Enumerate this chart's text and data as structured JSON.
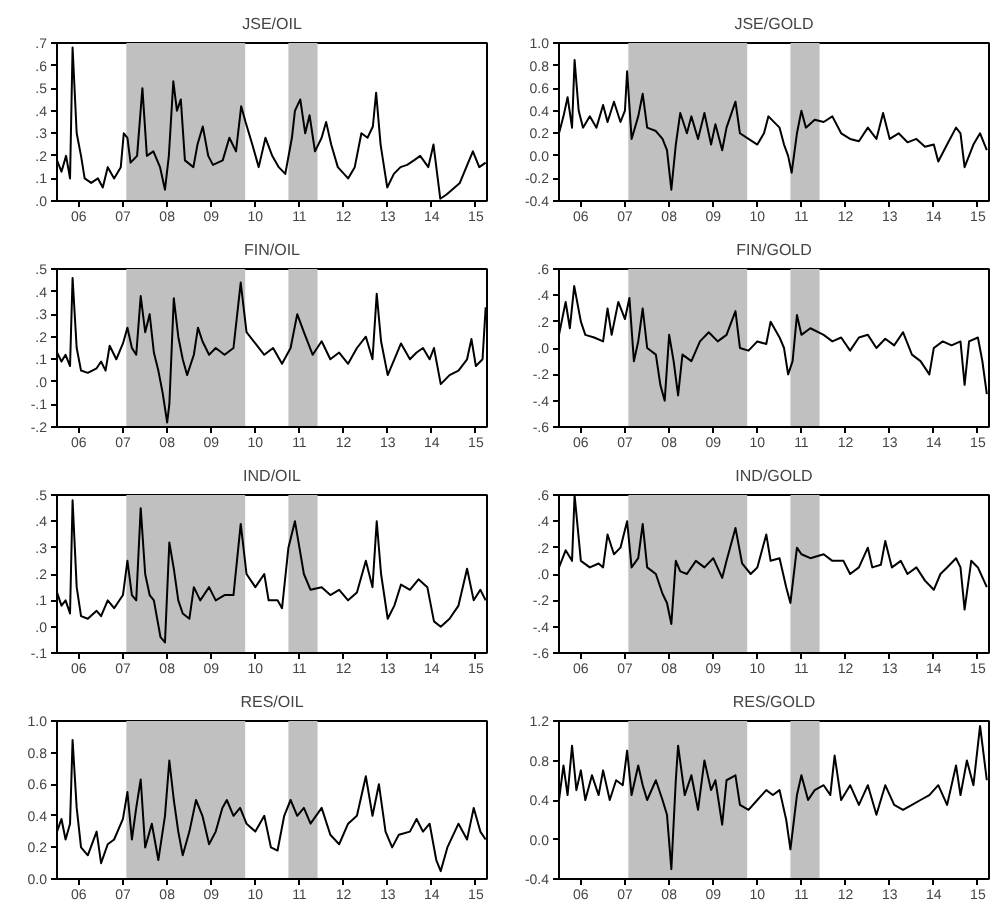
{
  "chart_data": [
    {
      "type": "line",
      "title": "JSE/OIL",
      "xlim": [
        "2006-01-01",
        "2015-10-01"
      ],
      "ylim": [
        0,
        0.7
      ],
      "grid": false,
      "xticks": [
        {
          "value": "2006-07-01",
          "label": "06"
        },
        {
          "value": "2007-07-01",
          "label": "07"
        },
        {
          "value": "2008-07-01",
          "label": "08"
        },
        {
          "value": "2009-07-01",
          "label": "09"
        },
        {
          "value": "2010-07-01",
          "label": "10"
        },
        {
          "value": "2011-07-01",
          "label": "11"
        },
        {
          "value": "2012-07-01",
          "label": "12"
        },
        {
          "value": "2013-07-01",
          "label": "13"
        },
        {
          "value": "2014-07-01",
          "label": "14"
        },
        {
          "value": "2015-07-01",
          "label": "15"
        }
      ],
      "yticks": [
        {
          "value": 0,
          "label": ".0"
        },
        {
          "value": 0.1,
          "label": ".1"
        },
        {
          "value": 0.2,
          "label": ".2"
        },
        {
          "value": 0.3,
          "label": ".3"
        },
        {
          "value": 0.4,
          "label": ".4"
        },
        {
          "value": 0.5,
          "label": ".5"
        },
        {
          "value": 0.6,
          "label": ".6"
        },
        {
          "value": 0.7,
          "label": ".7"
        }
      ],
      "bands": [
        {
          "axis": "x",
          "from": "2007-07-29",
          "to": "2010-04-08",
          "color": "#c0c0c0"
        },
        {
          "axis": "x",
          "from": "2011-04-01",
          "to": "2011-11-28",
          "color": "#c0c0c0"
        }
      ],
      "x": [
        "2006-01-01",
        "2006-02-07",
        "2006-03-17",
        "2006-04-19",
        "2006-05-10",
        "2006-06-13",
        "2006-07-19",
        "2006-08-18",
        "2006-10-11",
        "2006-12-06",
        "2007-01-15",
        "2007-02-25",
        "2007-04-19",
        "2007-06-13",
        "2007-07-08",
        "2007-08-07",
        "2007-09-02",
        "2007-10-26",
        "2007-12-09",
        "2008-01-15",
        "2008-03-09",
        "2008-05-03",
        "2008-06-13",
        "2008-07-15",
        "2008-08-21",
        "2008-09-20",
        "2008-10-22",
        "2008-11-25",
        "2009-02-03",
        "2009-03-09",
        "2009-04-22",
        "2009-06-06",
        "2009-07-15",
        "2009-10-04",
        "2009-11-28",
        "2010-01-22",
        "2010-03-06",
        "2010-04-11",
        "2010-06-06",
        "2010-07-29",
        "2010-09-23",
        "2010-11-18",
        "2011-01-11",
        "2011-03-06",
        "2011-04-30",
        "2011-05-25",
        "2011-07-08",
        "2011-08-18",
        "2011-09-23",
        "2011-11-07",
        "2012-01-01",
        "2012-02-07",
        "2012-03-20",
        "2012-05-14",
        "2012-08-07",
        "2012-10-01",
        "2012-11-25",
        "2013-01-15",
        "2013-02-28",
        "2013-03-27",
        "2013-05-03",
        "2013-06-27",
        "2013-08-21",
        "2013-10-15",
        "2013-12-09",
        "2014-02-03",
        "2014-03-27",
        "2014-06-02",
        "2014-07-15",
        "2014-09-09",
        "2014-11-03",
        "2015-02-18",
        "2015-06-06",
        "2015-07-29",
        "2015-09-20"
      ],
      "series": [
        {
          "color": "#000000",
          "values": [
            0.18,
            0.13,
            0.2,
            0.1,
            0.68,
            0.3,
            0.2,
            0.1,
            0.08,
            0.1,
            0.06,
            0.15,
            0.1,
            0.15,
            0.3,
            0.28,
            0.17,
            0.2,
            0.5,
            0.2,
            0.22,
            0.15,
            0.05,
            0.2,
            0.53,
            0.4,
            0.45,
            0.18,
            0.15,
            0.25,
            0.33,
            0.2,
            0.16,
            0.18,
            0.28,
            0.22,
            0.42,
            0.35,
            0.25,
            0.15,
            0.28,
            0.2,
            0.15,
            0.12,
            0.28,
            0.4,
            0.45,
            0.3,
            0.38,
            0.22,
            0.28,
            0.35,
            0.25,
            0.15,
            0.1,
            0.15,
            0.3,
            0.28,
            0.33,
            0.48,
            0.25,
            0.06,
            0.12,
            0.15,
            0.16,
            0.18,
            0.2,
            0.15,
            0.25,
            0.01,
            0.03,
            0.08,
            0.22,
            0.15,
            0.17
          ]
        }
      ]
    },
    {
      "type": "line",
      "title": "JSE/GOLD",
      "xlim": [
        "2006-01-01",
        "2015-10-01"
      ],
      "ylim": [
        -0.4,
        1.0
      ],
      "grid": false,
      "xticks": [
        {
          "value": "2006-07-01",
          "label": "06"
        },
        {
          "value": "2007-07-01",
          "label": "07"
        },
        {
          "value": "2008-07-01",
          "label": "08"
        },
        {
          "value": "2009-07-01",
          "label": "09"
        },
        {
          "value": "2010-07-01",
          "label": "10"
        },
        {
          "value": "2011-07-01",
          "label": "11"
        },
        {
          "value": "2012-07-01",
          "label": "12"
        },
        {
          "value": "2013-07-01",
          "label": "13"
        },
        {
          "value": "2014-07-01",
          "label": "14"
        },
        {
          "value": "2015-07-01",
          "label": "15"
        }
      ],
      "yticks": [
        {
          "value": -0.4,
          "label": "-0.4"
        },
        {
          "value": -0.2,
          "label": "-0.2"
        },
        {
          "value": 0,
          "label": "0.0"
        },
        {
          "value": 0.2,
          "label": "0.2"
        },
        {
          "value": 0.4,
          "label": "0.4"
        },
        {
          "value": 0.6,
          "label": "0.6"
        },
        {
          "value": 0.8,
          "label": "0.8"
        },
        {
          "value": 1.0,
          "label": "1.0"
        }
      ],
      "bands": [
        {
          "axis": "x",
          "from": "2007-07-29",
          "to": "2010-04-08",
          "color": "#c0c0c0"
        },
        {
          "axis": "x",
          "from": "2011-04-01",
          "to": "2011-11-28",
          "color": "#c0c0c0"
        }
      ],
      "x": [
        "2006-01-01",
        "2006-02-07",
        "2006-03-13",
        "2006-04-19",
        "2006-05-10",
        "2006-06-13",
        "2006-07-19",
        "2006-09-13",
        "2006-11-07",
        "2007-01-01",
        "2007-02-07",
        "2007-04-01",
        "2007-05-25",
        "2007-07-01",
        "2007-07-19",
        "2007-08-25",
        "2007-10-19",
        "2007-11-25",
        "2008-01-01",
        "2008-03-13",
        "2008-05-07",
        "2008-06-13",
        "2008-07-19",
        "2008-08-25",
        "2008-10-01",
        "2008-11-25",
        "2009-01-01",
        "2009-02-25",
        "2009-04-19",
        "2009-06-13",
        "2009-07-19",
        "2009-09-13",
        "2009-10-19",
        "2010-01-01",
        "2010-02-07",
        "2010-04-19",
        "2010-07-01",
        "2010-08-25",
        "2010-10-01",
        "2011-01-01",
        "2011-02-07",
        "2011-03-13",
        "2011-04-11",
        "2011-05-25",
        "2011-07-01",
        "2011-08-07",
        "2011-10-19",
        "2012-01-01",
        "2012-03-13",
        "2012-05-25",
        "2012-08-07",
        "2012-10-19",
        "2013-01-01",
        "2013-03-13",
        "2013-05-07",
        "2013-07-01",
        "2013-09-13",
        "2013-11-25",
        "2014-02-07",
        "2014-04-19",
        "2014-07-01",
        "2014-08-07",
        "2014-10-19",
        "2015-01-01",
        "2015-02-07",
        "2015-03-13",
        "2015-05-25",
        "2015-07-19",
        "2015-09-13"
      ],
      "series": [
        {
          "color": "#000000",
          "values": [
            0.2,
            0.35,
            0.52,
            0.25,
            0.85,
            0.4,
            0.25,
            0.35,
            0.25,
            0.45,
            0.3,
            0.48,
            0.3,
            0.4,
            0.75,
            0.15,
            0.35,
            0.55,
            0.25,
            0.22,
            0.15,
            0.05,
            -0.3,
            0.1,
            0.38,
            0.2,
            0.35,
            0.15,
            0.38,
            0.1,
            0.28,
            0.05,
            0.25,
            0.48,
            0.2,
            0.15,
            0.1,
            0.2,
            0.35,
            0.25,
            0.1,
            0.0,
            -0.15,
            0.2,
            0.4,
            0.25,
            0.32,
            0.3,
            0.35,
            0.2,
            0.15,
            0.13,
            0.25,
            0.15,
            0.38,
            0.15,
            0.2,
            0.12,
            0.15,
            0.08,
            0.1,
            -0.05,
            0.1,
            0.25,
            0.2,
            -0.1,
            0.1,
            0.2,
            0.05
          ]
        }
      ]
    },
    {
      "type": "line",
      "title": "FIN/OIL",
      "xlim": [
        "2006-01-01",
        "2015-10-01"
      ],
      "ylim": [
        -0.2,
        0.5
      ],
      "grid": false,
      "xticks": [
        {
          "value": "2006-07-01",
          "label": "06"
        },
        {
          "value": "2007-07-01",
          "label": "07"
        },
        {
          "value": "2008-07-01",
          "label": "08"
        },
        {
          "value": "2009-07-01",
          "label": "09"
        },
        {
          "value": "2010-07-01",
          "label": "10"
        },
        {
          "value": "2011-07-01",
          "label": "11"
        },
        {
          "value": "2012-07-01",
          "label": "12"
        },
        {
          "value": "2013-07-01",
          "label": "13"
        },
        {
          "value": "2014-07-01",
          "label": "14"
        },
        {
          "value": "2015-07-01",
          "label": "15"
        }
      ],
      "yticks": [
        {
          "value": -0.2,
          "label": "-.2"
        },
        {
          "value": -0.1,
          "label": "-.1"
        },
        {
          "value": 0,
          "label": ".0"
        },
        {
          "value": 0.1,
          "label": ".1"
        },
        {
          "value": 0.2,
          "label": ".2"
        },
        {
          "value": 0.3,
          "label": ".3"
        },
        {
          "value": 0.4,
          "label": ".4"
        },
        {
          "value": 0.5,
          "label": ".5"
        }
      ],
      "bands": [
        {
          "axis": "x",
          "from": "2007-07-29",
          "to": "2010-04-08",
          "color": "#c0c0c0"
        },
        {
          "axis": "x",
          "from": "2011-04-01",
          "to": "2011-11-28",
          "color": "#c0c0c0"
        }
      ],
      "x": [
        "2006-01-01",
        "2006-02-07",
        "2006-03-13",
        "2006-04-19",
        "2006-05-10",
        "2006-06-13",
        "2006-07-19",
        "2006-09-13",
        "2006-11-25",
        "2007-01-01",
        "2007-02-07",
        "2007-03-13",
        "2007-05-07",
        "2007-07-01",
        "2007-08-07",
        "2007-09-13",
        "2007-10-19",
        "2007-11-25",
        "2008-01-01",
        "2008-02-07",
        "2008-03-13",
        "2008-04-19",
        "2008-05-25",
        "2008-07-01",
        "2008-07-19",
        "2008-08-25",
        "2008-10-01",
        "2008-11-07",
        "2008-12-13",
        "2009-02-07",
        "2009-03-13",
        "2009-04-19",
        "2009-06-13",
        "2009-08-07",
        "2009-10-19",
        "2010-01-01",
        "2010-03-02",
        "2010-04-19",
        "2010-07-01",
        "2010-09-13",
        "2010-11-25",
        "2011-02-07",
        "2011-04-19",
        "2011-06-13",
        "2011-08-07",
        "2011-10-19",
        "2012-01-01",
        "2012-03-13",
        "2012-05-25",
        "2012-08-07",
        "2012-10-19",
        "2013-01-01",
        "2013-02-25",
        "2013-04-01",
        "2013-05-07",
        "2013-07-01",
        "2013-08-25",
        "2013-10-19",
        "2014-01-01",
        "2014-02-25",
        "2014-04-19",
        "2014-06-13",
        "2014-07-19",
        "2014-09-13",
        "2014-11-25",
        "2015-02-07",
        "2015-04-19",
        "2015-05-25",
        "2015-07-01",
        "2015-08-25",
        "2015-09-20"
      ],
      "series": [
        {
          "color": "#000000",
          "values": [
            0.13,
            0.09,
            0.12,
            0.07,
            0.46,
            0.15,
            0.05,
            0.04,
            0.06,
            0.09,
            0.05,
            0.16,
            0.1,
            0.17,
            0.24,
            0.15,
            0.12,
            0.38,
            0.22,
            0.3,
            0.13,
            0.05,
            -0.05,
            -0.18,
            -0.1,
            0.37,
            0.2,
            0.1,
            0.03,
            0.12,
            0.24,
            0.18,
            0.12,
            0.15,
            0.12,
            0.15,
            0.44,
            0.22,
            0.17,
            0.12,
            0.15,
            0.08,
            0.15,
            0.3,
            0.22,
            0.12,
            0.18,
            0.1,
            0.13,
            0.08,
            0.15,
            0.2,
            0.1,
            0.39,
            0.18,
            0.03,
            0.1,
            0.17,
            0.1,
            0.13,
            0.15,
            0.1,
            0.15,
            -0.01,
            0.03,
            0.05,
            0.1,
            0.19,
            0.07,
            0.1,
            0.33
          ]
        }
      ]
    },
    {
      "type": "line",
      "title": "FIN/GOLD",
      "xlim": [
        "2006-01-01",
        "2015-10-01"
      ],
      "ylim": [
        -0.6,
        0.6
      ],
      "grid": false,
      "xticks": [
        {
          "value": "2006-07-01",
          "label": "06"
        },
        {
          "value": "2007-07-01",
          "label": "07"
        },
        {
          "value": "2008-07-01",
          "label": "08"
        },
        {
          "value": "2009-07-01",
          "label": "09"
        },
        {
          "value": "2010-07-01",
          "label": "10"
        },
        {
          "value": "2011-07-01",
          "label": "11"
        },
        {
          "value": "2012-07-01",
          "label": "12"
        },
        {
          "value": "2013-07-01",
          "label": "13"
        },
        {
          "value": "2014-07-01",
          "label": "14"
        },
        {
          "value": "2015-07-01",
          "label": "15"
        }
      ],
      "yticks": [
        {
          "value": -0.6,
          "label": "-.6"
        },
        {
          "value": -0.4,
          "label": "-.4"
        },
        {
          "value": -0.2,
          "label": "-.2"
        },
        {
          "value": 0,
          "label": ".0"
        },
        {
          "value": 0.2,
          "label": ".2"
        },
        {
          "value": 0.4,
          "label": ".4"
        },
        {
          "value": 0.6,
          "label": ".6"
        }
      ],
      "bands": [
        {
          "axis": "x",
          "from": "2007-07-29",
          "to": "2010-04-08",
          "color": "#c0c0c0"
        },
        {
          "axis": "x",
          "from": "2011-04-01",
          "to": "2011-11-28",
          "color": "#c0c0c0"
        }
      ],
      "x": [
        "2006-01-01",
        "2006-02-25",
        "2006-04-01",
        "2006-05-07",
        "2006-07-01",
        "2006-08-07",
        "2006-10-19",
        "2007-01-01",
        "2007-02-07",
        "2007-03-13",
        "2007-05-07",
        "2007-07-01",
        "2007-08-07",
        "2007-09-13",
        "2007-10-19",
        "2007-11-25",
        "2008-01-01",
        "2008-03-13",
        "2008-04-19",
        "2008-05-25",
        "2008-07-01",
        "2008-08-07",
        "2008-09-13",
        "2008-10-19",
        "2009-01-01",
        "2009-03-13",
        "2009-05-25",
        "2009-08-07",
        "2009-10-19",
        "2010-01-01",
        "2010-02-07",
        "2010-04-19",
        "2010-07-01",
        "2010-09-13",
        "2010-10-19",
        "2011-01-01",
        "2011-02-07",
        "2011-03-13",
        "2011-04-19",
        "2011-05-25",
        "2011-07-01",
        "2011-09-13",
        "2012-01-01",
        "2012-03-13",
        "2012-05-25",
        "2012-08-07",
        "2012-10-19",
        "2013-01-01",
        "2013-03-13",
        "2013-05-25",
        "2013-08-07",
        "2013-10-19",
        "2014-01-01",
        "2014-03-13",
        "2014-05-25",
        "2014-07-01",
        "2014-09-13",
        "2014-11-25",
        "2015-02-07",
        "2015-03-13",
        "2015-04-19",
        "2015-07-01",
        "2015-08-07",
        "2015-09-13"
      ],
      "series": [
        {
          "color": "#000000",
          "values": [
            0.1,
            0.35,
            0.15,
            0.47,
            0.2,
            0.1,
            0.08,
            0.05,
            0.3,
            0.1,
            0.35,
            0.22,
            0.38,
            -0.1,
            0.05,
            0.3,
            0.0,
            -0.05,
            -0.28,
            -0.4,
            0.1,
            -0.1,
            -0.36,
            -0.05,
            -0.1,
            0.05,
            0.12,
            0.05,
            0.1,
            0.28,
            0.0,
            -0.02,
            0.05,
            0.03,
            0.2,
            0.08,
            0.0,
            -0.2,
            -0.1,
            0.25,
            0.1,
            0.15,
            0.1,
            0.05,
            0.08,
            -0.02,
            0.08,
            0.1,
            0.0,
            0.07,
            0.02,
            0.12,
            -0.05,
            -0.1,
            -0.2,
            0.0,
            0.05,
            0.02,
            0.05,
            -0.28,
            0.05,
            0.08,
            -0.1,
            -0.35
          ]
        }
      ]
    },
    {
      "type": "line",
      "title": "IND/OIL",
      "xlim": [
        "2006-01-01",
        "2015-10-01"
      ],
      "ylim": [
        -0.1,
        0.5
      ],
      "grid": false,
      "xticks": [
        {
          "value": "2006-07-01",
          "label": "06"
        },
        {
          "value": "2007-07-01",
          "label": "07"
        },
        {
          "value": "2008-07-01",
          "label": "08"
        },
        {
          "value": "2009-07-01",
          "label": "09"
        },
        {
          "value": "2010-07-01",
          "label": "10"
        },
        {
          "value": "2011-07-01",
          "label": "11"
        },
        {
          "value": "2012-07-01",
          "label": "12"
        },
        {
          "value": "2013-07-01",
          "label": "13"
        },
        {
          "value": "2014-07-01",
          "label": "14"
        },
        {
          "value": "2015-07-01",
          "label": "15"
        }
      ],
      "yticks": [
        {
          "value": -0.1,
          "label": "-.1"
        },
        {
          "value": 0,
          "label": ".0"
        },
        {
          "value": 0.1,
          "label": ".1"
        },
        {
          "value": 0.2,
          "label": ".2"
        },
        {
          "value": 0.3,
          "label": ".3"
        },
        {
          "value": 0.4,
          "label": ".4"
        },
        {
          "value": 0.5,
          "label": ".5"
        }
      ],
      "bands": [
        {
          "axis": "x",
          "from": "2007-07-29",
          "to": "2010-04-08",
          "color": "#c0c0c0"
        },
        {
          "axis": "x",
          "from": "2011-04-01",
          "to": "2011-11-28",
          "color": "#c0c0c0"
        }
      ],
      "x": [
        "2006-01-01",
        "2006-02-07",
        "2006-03-13",
        "2006-04-19",
        "2006-05-10",
        "2006-06-13",
        "2006-07-19",
        "2006-09-13",
        "2006-11-25",
        "2007-01-01",
        "2007-02-25",
        "2007-04-19",
        "2007-07-01",
        "2007-08-07",
        "2007-09-13",
        "2007-10-19",
        "2007-11-25",
        "2008-01-01",
        "2008-02-07",
        "2008-03-13",
        "2008-05-07",
        "2008-06-13",
        "2008-07-19",
        "2008-08-25",
        "2008-10-01",
        "2008-11-07",
        "2009-01-01",
        "2009-02-07",
        "2009-04-01",
        "2009-06-13",
        "2009-08-07",
        "2009-10-19",
        "2010-01-01",
        "2010-03-02",
        "2010-04-19",
        "2010-07-01",
        "2010-09-13",
        "2010-10-19",
        "2011-01-01",
        "2011-02-07",
        "2011-04-01",
        "2011-05-25",
        "2011-07-01",
        "2011-08-07",
        "2011-10-01",
        "2012-01-01",
        "2012-03-13",
        "2012-05-25",
        "2012-08-07",
        "2012-10-19",
        "2013-01-01",
        "2013-02-25",
        "2013-04-01",
        "2013-05-07",
        "2013-07-01",
        "2013-08-25",
        "2013-10-19",
        "2014-01-01",
        "2014-03-13",
        "2014-05-25",
        "2014-07-19",
        "2014-09-13",
        "2014-11-25",
        "2015-02-07",
        "2015-04-19",
        "2015-06-13",
        "2015-08-07",
        "2015-09-20"
      ],
      "series": [
        {
          "color": "#000000",
          "values": [
            0.13,
            0.08,
            0.1,
            0.05,
            0.48,
            0.15,
            0.04,
            0.03,
            0.06,
            0.04,
            0.1,
            0.07,
            0.12,
            0.25,
            0.12,
            0.1,
            0.45,
            0.2,
            0.12,
            0.1,
            -0.04,
            -0.06,
            0.32,
            0.22,
            0.1,
            0.05,
            0.03,
            0.15,
            0.1,
            0.15,
            0.1,
            0.12,
            0.12,
            0.39,
            0.2,
            0.15,
            0.2,
            0.1,
            0.1,
            0.07,
            0.3,
            0.4,
            0.3,
            0.2,
            0.14,
            0.15,
            0.12,
            0.14,
            0.1,
            0.13,
            0.25,
            0.15,
            0.4,
            0.2,
            0.03,
            0.08,
            0.16,
            0.14,
            0.18,
            0.15,
            0.02,
            0.0,
            0.03,
            0.08,
            0.22,
            0.1,
            0.14,
            0.1
          ]
        }
      ]
    },
    {
      "type": "line",
      "title": "IND/GOLD",
      "xlim": [
        "2006-01-01",
        "2015-10-01"
      ],
      "ylim": [
        -0.6,
        0.6
      ],
      "grid": false,
      "xticks": [
        {
          "value": "2006-07-01",
          "label": "06"
        },
        {
          "value": "2007-07-01",
          "label": "07"
        },
        {
          "value": "2008-07-01",
          "label": "08"
        },
        {
          "value": "2009-07-01",
          "label": "09"
        },
        {
          "value": "2010-07-01",
          "label": "10"
        },
        {
          "value": "2011-07-01",
          "label": "11"
        },
        {
          "value": "2012-07-01",
          "label": "12"
        },
        {
          "value": "2013-07-01",
          "label": "13"
        },
        {
          "value": "2014-07-01",
          "label": "14"
        },
        {
          "value": "2015-07-01",
          "label": "15"
        }
      ],
      "yticks": [
        {
          "value": -0.6,
          "label": "-.6"
        },
        {
          "value": -0.4,
          "label": "-.4"
        },
        {
          "value": -0.2,
          "label": "-.2"
        },
        {
          "value": 0,
          "label": ".0"
        },
        {
          "value": 0.2,
          "label": ".2"
        },
        {
          "value": 0.4,
          "label": ".4"
        },
        {
          "value": 0.6,
          "label": ".6"
        }
      ],
      "bands": [
        {
          "axis": "x",
          "from": "2007-07-29",
          "to": "2010-04-08",
          "color": "#c0c0c0"
        },
        {
          "axis": "x",
          "from": "2011-04-01",
          "to": "2011-11-28",
          "color": "#c0c0c0"
        }
      ],
      "x": [
        "2006-01-01",
        "2006-02-25",
        "2006-04-19",
        "2006-05-10",
        "2006-07-01",
        "2006-09-13",
        "2006-11-25",
        "2007-01-01",
        "2007-02-07",
        "2007-04-01",
        "2007-05-25",
        "2007-07-19",
        "2007-08-25",
        "2007-10-19",
        "2007-11-25",
        "2008-01-01",
        "2008-03-13",
        "2008-05-07",
        "2008-06-13",
        "2008-07-19",
        "2008-08-25",
        "2008-10-01",
        "2008-11-25",
        "2009-02-07",
        "2009-04-19",
        "2009-07-01",
        "2009-09-13",
        "2009-10-19",
        "2010-01-01",
        "2010-02-25",
        "2010-05-07",
        "2010-07-01",
        "2010-09-13",
        "2010-10-19",
        "2011-01-01",
        "2011-02-25",
        "2011-04-01",
        "2011-05-25",
        "2011-07-01",
        "2011-09-13",
        "2012-01-01",
        "2012-03-13",
        "2012-06-13",
        "2012-08-07",
        "2012-10-19",
        "2013-01-01",
        "2013-02-07",
        "2013-04-19",
        "2013-05-25",
        "2013-07-19",
        "2013-10-01",
        "2013-11-25",
        "2014-02-07",
        "2014-04-19",
        "2014-07-01",
        "2014-08-25",
        "2014-10-19",
        "2015-01-01",
        "2015-02-07",
        "2015-03-13",
        "2015-05-07",
        "2015-07-01",
        "2015-09-13"
      ],
      "series": [
        {
          "color": "#000000",
          "values": [
            0.05,
            0.18,
            0.1,
            0.6,
            0.1,
            0.05,
            0.08,
            0.05,
            0.3,
            0.15,
            0.2,
            0.4,
            0.05,
            0.12,
            0.38,
            0.05,
            0.0,
            -0.15,
            -0.22,
            -0.38,
            0.1,
            0.02,
            0.0,
            0.1,
            0.05,
            0.12,
            -0.03,
            0.1,
            0.35,
            0.08,
            0.0,
            0.05,
            0.3,
            0.1,
            0.12,
            -0.1,
            -0.22,
            0.2,
            0.15,
            0.12,
            0.15,
            0.1,
            0.1,
            0.0,
            0.05,
            0.2,
            0.05,
            0.07,
            0.25,
            0.05,
            0.1,
            0.0,
            0.05,
            -0.05,
            -0.12,
            0.0,
            0.05,
            0.12,
            0.05,
            -0.27,
            0.1,
            0.05,
            -0.1
          ]
        }
      ]
    },
    {
      "type": "line",
      "title": "RES/OIL",
      "xlim": [
        "2006-01-01",
        "2015-10-01"
      ],
      "ylim": [
        0,
        1.0
      ],
      "grid": false,
      "xticks": [
        {
          "value": "2006-07-01",
          "label": "06"
        },
        {
          "value": "2007-07-01",
          "label": "07"
        },
        {
          "value": "2008-07-01",
          "label": "08"
        },
        {
          "value": "2009-07-01",
          "label": "09"
        },
        {
          "value": "2010-07-01",
          "label": "10"
        },
        {
          "value": "2011-07-01",
          "label": "11"
        },
        {
          "value": "2012-07-01",
          "label": "12"
        },
        {
          "value": "2013-07-01",
          "label": "13"
        },
        {
          "value": "2014-07-01",
          "label": "14"
        },
        {
          "value": "2015-07-01",
          "label": "15"
        }
      ],
      "yticks": [
        {
          "value": 0,
          "label": "0.0"
        },
        {
          "value": 0.2,
          "label": "0.2"
        },
        {
          "value": 0.4,
          "label": "0.4"
        },
        {
          "value": 0.6,
          "label": "0.6"
        },
        {
          "value": 0.8,
          "label": "0.8"
        },
        {
          "value": 1.0,
          "label": "1.0"
        }
      ],
      "bands": [
        {
          "axis": "x",
          "from": "2007-07-29",
          "to": "2010-04-08",
          "color": "#c0c0c0"
        },
        {
          "axis": "x",
          "from": "2011-04-01",
          "to": "2011-11-28",
          "color": "#c0c0c0"
        }
      ],
      "x": [
        "2006-01-01",
        "2006-02-07",
        "2006-03-13",
        "2006-04-19",
        "2006-05-10",
        "2006-06-13",
        "2006-07-19",
        "2006-09-13",
        "2006-11-25",
        "2007-01-01",
        "2007-02-25",
        "2007-04-19",
        "2007-07-01",
        "2007-08-07",
        "2007-09-13",
        "2007-10-19",
        "2007-11-25",
        "2008-01-01",
        "2008-02-25",
        "2008-04-19",
        "2008-06-13",
        "2008-07-19",
        "2008-08-25",
        "2008-10-01",
        "2008-11-07",
        "2009-01-01",
        "2009-02-25",
        "2009-04-19",
        "2009-06-13",
        "2009-08-07",
        "2009-10-01",
        "2009-11-07",
        "2010-01-01",
        "2010-02-25",
        "2010-04-19",
        "2010-07-01",
        "2010-09-13",
        "2010-11-07",
        "2011-01-01",
        "2011-02-25",
        "2011-04-19",
        "2011-06-13",
        "2011-08-07",
        "2011-10-01",
        "2012-01-01",
        "2012-03-13",
        "2012-05-25",
        "2012-08-07",
        "2012-10-19",
        "2013-01-01",
        "2013-02-25",
        "2013-04-19",
        "2013-06-13",
        "2013-08-07",
        "2013-10-01",
        "2014-01-01",
        "2014-02-25",
        "2014-04-19",
        "2014-06-13",
        "2014-08-07",
        "2014-09-13",
        "2014-11-07",
        "2015-02-07",
        "2015-04-19",
        "2015-06-13",
        "2015-08-07",
        "2015-09-20"
      ],
      "series": [
        {
          "color": "#000000",
          "values": [
            0.3,
            0.38,
            0.25,
            0.35,
            0.88,
            0.45,
            0.2,
            0.15,
            0.3,
            0.1,
            0.22,
            0.25,
            0.38,
            0.55,
            0.25,
            0.45,
            0.63,
            0.2,
            0.35,
            0.12,
            0.4,
            0.75,
            0.5,
            0.3,
            0.15,
            0.3,
            0.5,
            0.4,
            0.22,
            0.3,
            0.45,
            0.5,
            0.4,
            0.45,
            0.35,
            0.3,
            0.4,
            0.2,
            0.18,
            0.4,
            0.5,
            0.4,
            0.45,
            0.35,
            0.45,
            0.28,
            0.22,
            0.35,
            0.4,
            0.65,
            0.4,
            0.6,
            0.3,
            0.2,
            0.28,
            0.3,
            0.38,
            0.3,
            0.35,
            0.12,
            0.05,
            0.2,
            0.35,
            0.25,
            0.45,
            0.3,
            0.25
          ]
        }
      ]
    },
    {
      "type": "line",
      "title": "RES/GOLD",
      "xlim": [
        "2006-01-01",
        "2015-10-01"
      ],
      "ylim": [
        -0.4,
        1.2
      ],
      "grid": false,
      "xticks": [
        {
          "value": "2006-07-01",
          "label": "06"
        },
        {
          "value": "2007-07-01",
          "label": "07"
        },
        {
          "value": "2008-07-01",
          "label": "08"
        },
        {
          "value": "2009-07-01",
          "label": "09"
        },
        {
          "value": "2010-07-01",
          "label": "10"
        },
        {
          "value": "2011-07-01",
          "label": "11"
        },
        {
          "value": "2012-07-01",
          "label": "12"
        },
        {
          "value": "2013-07-01",
          "label": "13"
        },
        {
          "value": "2014-07-01",
          "label": "14"
        },
        {
          "value": "2015-07-01",
          "label": "15"
        }
      ],
      "yticks": [
        {
          "value": -0.4,
          "label": "-0.4"
        },
        {
          "value": 0,
          "label": "0.0"
        },
        {
          "value": 0.4,
          "label": "0.4"
        },
        {
          "value": 0.8,
          "label": "0.8"
        },
        {
          "value": 1.2,
          "label": "1.2"
        }
      ],
      "bands": [
        {
          "axis": "x",
          "from": "2007-07-29",
          "to": "2010-04-08",
          "color": "#c0c0c0"
        },
        {
          "axis": "x",
          "from": "2011-04-01",
          "to": "2011-11-28",
          "color": "#c0c0c0"
        }
      ],
      "x": [
        "2006-01-01",
        "2006-02-07",
        "2006-03-13",
        "2006-04-19",
        "2006-05-25",
        "2006-07-01",
        "2006-08-07",
        "2006-10-01",
        "2006-11-25",
        "2007-01-01",
        "2007-02-25",
        "2007-04-19",
        "2007-06-13",
        "2007-07-19",
        "2007-08-25",
        "2007-10-19",
        "2007-11-25",
        "2008-01-01",
        "2008-03-13",
        "2008-05-07",
        "2008-06-13",
        "2008-07-19",
        "2008-08-25",
        "2008-09-13",
        "2008-11-07",
        "2009-01-01",
        "2009-02-25",
        "2009-04-19",
        "2009-06-13",
        "2009-07-19",
        "2009-09-13",
        "2009-10-19",
        "2010-01-01",
        "2010-02-07",
        "2010-04-19",
        "2010-07-01",
        "2010-09-13",
        "2010-11-07",
        "2011-01-01",
        "2011-02-25",
        "2011-04-01",
        "2011-05-25",
        "2011-07-01",
        "2011-08-25",
        "2011-10-19",
        "2012-01-01",
        "2012-02-25",
        "2012-04-01",
        "2012-05-25",
        "2012-08-07",
        "2012-10-19",
        "2013-01-01",
        "2013-03-13",
        "2013-05-25",
        "2013-08-07",
        "2013-10-19",
        "2014-01-01",
        "2014-03-13",
        "2014-05-25",
        "2014-08-07",
        "2014-10-19",
        "2015-01-01",
        "2015-02-07",
        "2015-04-01",
        "2015-05-25",
        "2015-07-19",
        "2015-09-13"
      ],
      "series": [
        {
          "color": "#000000",
          "values": [
            0.4,
            0.75,
            0.45,
            0.95,
            0.5,
            0.7,
            0.4,
            0.65,
            0.45,
            0.7,
            0.4,
            0.6,
            0.55,
            0.9,
            0.45,
            0.75,
            0.55,
            0.4,
            0.6,
            0.4,
            0.25,
            -0.3,
            0.6,
            0.95,
            0.45,
            0.65,
            0.3,
            0.8,
            0.5,
            0.6,
            0.15,
            0.6,
            0.65,
            0.35,
            0.3,
            0.4,
            0.5,
            0.45,
            0.5,
            0.2,
            -0.1,
            0.45,
            0.65,
            0.4,
            0.5,
            0.55,
            0.45,
            0.85,
            0.4,
            0.55,
            0.35,
            0.55,
            0.25,
            0.55,
            0.35,
            0.3,
            0.35,
            0.4,
            0.45,
            0.55,
            0.35,
            0.75,
            0.45,
            0.8,
            0.55,
            1.15,
            0.6
          ]
        }
      ]
    }
  ]
}
